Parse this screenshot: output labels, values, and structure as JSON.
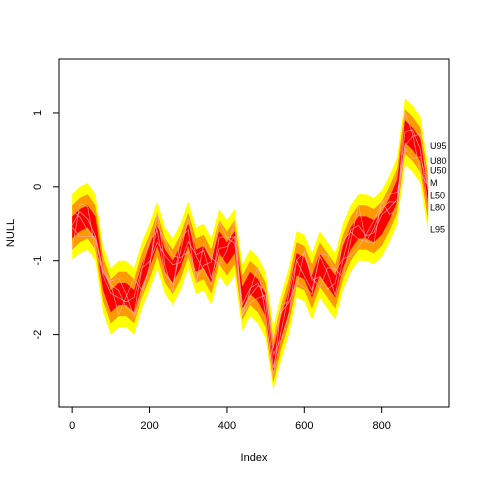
{
  "chart_data": {
    "type": "area",
    "xlabel": "Index",
    "ylabel": "NULL",
    "xlim": [
      -34,
      974
    ],
    "ylim": [
      -2.98,
      1.73
    ],
    "x_ticks": [
      0,
      200,
      400,
      600,
      800
    ],
    "x_tick_labels": [
      "0",
      "200",
      "400",
      "600",
      "800"
    ],
    "y_ticks": [
      -2,
      -1,
      0,
      1
    ],
    "y_tick_labels": [
      "-2",
      "-1",
      "0",
      "1"
    ],
    "grid": false,
    "colors": {
      "band95": "#ffff00",
      "band80": "#ff9900",
      "band50": "#ff0000",
      "trace": "#ffb0b0",
      "axis": "#000000"
    },
    "x": [
      0,
      20,
      40,
      60,
      80,
      100,
      120,
      140,
      160,
      180,
      200,
      220,
      240,
      260,
      280,
      300,
      320,
      340,
      360,
      380,
      400,
      420,
      440,
      460,
      480,
      500,
      520,
      540,
      560,
      580,
      600,
      620,
      640,
      660,
      680,
      700,
      720,
      740,
      760,
      780,
      800,
      820,
      840,
      860,
      880,
      900,
      920
    ],
    "series": [
      {
        "name": "M",
        "values": [
          -0.55,
          -0.45,
          -0.4,
          -0.55,
          -1.25,
          -1.55,
          -1.45,
          -1.45,
          -1.55,
          -1.2,
          -0.95,
          -0.65,
          -1.0,
          -1.15,
          -0.95,
          -0.65,
          -1.0,
          -0.95,
          -1.15,
          -0.75,
          -0.9,
          -0.75,
          -1.5,
          -1.3,
          -1.4,
          -1.6,
          -2.35,
          -1.9,
          -1.55,
          -1.05,
          -1.1,
          -1.35,
          -1.05,
          -1.2,
          -1.35,
          -0.95,
          -0.7,
          -0.55,
          -0.55,
          -0.6,
          -0.5,
          -0.3,
          -0.05,
          0.75,
          0.65,
          0.5,
          -0.15
        ]
      },
      {
        "name": "L50",
        "values": [
          -0.7,
          -0.6,
          -0.55,
          -0.7,
          -1.4,
          -1.7,
          -1.6,
          -1.6,
          -1.7,
          -1.35,
          -1.1,
          -0.8,
          -1.15,
          -1.3,
          -1.1,
          -0.8,
          -1.15,
          -1.1,
          -1.3,
          -0.9,
          -1.05,
          -0.9,
          -1.65,
          -1.45,
          -1.55,
          -1.75,
          -2.5,
          -2.05,
          -1.7,
          -1.2,
          -1.25,
          -1.5,
          -1.2,
          -1.35,
          -1.5,
          -1.1,
          -0.85,
          -0.7,
          -0.7,
          -0.75,
          -0.65,
          -0.45,
          -0.2,
          0.6,
          0.5,
          0.35,
          -0.3
        ]
      },
      {
        "name": "U50",
        "values": [
          -0.4,
          -0.3,
          -0.25,
          -0.4,
          -1.1,
          -1.4,
          -1.3,
          -1.3,
          -1.4,
          -1.05,
          -0.8,
          -0.5,
          -0.85,
          -1.0,
          -0.8,
          -0.5,
          -0.85,
          -0.8,
          -1.0,
          -0.6,
          -0.75,
          -0.6,
          -1.35,
          -1.15,
          -1.25,
          -1.45,
          -2.2,
          -1.75,
          -1.4,
          -0.9,
          -0.95,
          -1.2,
          -0.9,
          -1.05,
          -1.2,
          -0.8,
          -0.55,
          -0.4,
          -0.4,
          -0.45,
          -0.35,
          -0.15,
          0.1,
          0.9,
          0.8,
          0.65,
          0.0
        ]
      },
      {
        "name": "L80",
        "values": [
          -0.85,
          -0.75,
          -0.7,
          -0.85,
          -1.55,
          -1.85,
          -1.75,
          -1.75,
          -1.85,
          -1.5,
          -1.25,
          -0.95,
          -1.3,
          -1.45,
          -1.25,
          -0.95,
          -1.3,
          -1.25,
          -1.45,
          -1.05,
          -1.2,
          -1.05,
          -1.8,
          -1.6,
          -1.7,
          -1.9,
          -2.65,
          -2.2,
          -1.85,
          -1.35,
          -1.4,
          -1.65,
          -1.35,
          -1.5,
          -1.65,
          -1.25,
          -1.0,
          -0.85,
          -0.85,
          -0.9,
          -0.8,
          -0.6,
          -0.35,
          0.45,
          0.35,
          0.2,
          -0.45
        ]
      },
      {
        "name": "U80",
        "values": [
          -0.25,
          -0.15,
          -0.1,
          -0.25,
          -0.95,
          -1.25,
          -1.15,
          -1.15,
          -1.25,
          -0.9,
          -0.65,
          -0.35,
          -0.7,
          -0.85,
          -0.65,
          -0.35,
          -0.7,
          -0.65,
          -0.85,
          -0.45,
          -0.6,
          -0.45,
          -1.2,
          -1.0,
          -1.1,
          -1.3,
          -2.05,
          -1.6,
          -1.25,
          -0.75,
          -0.8,
          -1.05,
          -0.75,
          -0.9,
          -1.05,
          -0.65,
          -0.4,
          -0.25,
          -0.25,
          -0.3,
          -0.2,
          0.0,
          0.25,
          1.05,
          0.95,
          0.8,
          0.15
        ]
      },
      {
        "name": "L95",
        "values": [
          -0.98,
          -0.9,
          -0.85,
          -1.0,
          -1.7,
          -2.0,
          -1.9,
          -1.9,
          -2.0,
          -1.65,
          -1.4,
          -1.1,
          -1.45,
          -1.6,
          -1.4,
          -1.1,
          -1.45,
          -1.4,
          -1.6,
          -1.2,
          -1.35,
          -1.2,
          -1.95,
          -1.75,
          -1.85,
          -2.05,
          -2.75,
          -2.35,
          -2.0,
          -1.5,
          -1.55,
          -1.8,
          -1.5,
          -1.65,
          -1.8,
          -1.4,
          -1.15,
          -1.0,
          -1.0,
          -1.05,
          -0.95,
          -0.75,
          -0.5,
          0.3,
          0.2,
          0.05,
          -0.6
        ]
      },
      {
        "name": "U95",
        "values": [
          -0.1,
          0.0,
          0.05,
          -0.1,
          -0.8,
          -1.1,
          -1.0,
          -1.0,
          -1.1,
          -0.75,
          -0.5,
          -0.2,
          -0.55,
          -0.7,
          -0.5,
          -0.2,
          -0.55,
          -0.5,
          -0.7,
          -0.3,
          -0.45,
          -0.3,
          -1.05,
          -0.85,
          -0.95,
          -1.15,
          -1.9,
          -1.45,
          -1.1,
          -0.6,
          -0.65,
          -0.9,
          -0.6,
          -0.75,
          -0.9,
          -0.5,
          -0.25,
          -0.1,
          -0.1,
          -0.15,
          -0.05,
          0.15,
          0.4,
          1.2,
          1.1,
          0.95,
          0.3
        ]
      }
    ],
    "side_labels": [
      {
        "name": "U95",
        "y": 0.55
      },
      {
        "name": "U80",
        "y": 0.35
      },
      {
        "name": "U50",
        "y": 0.22
      },
      {
        "name": "M",
        "y": 0.05
      },
      {
        "name": "L50",
        "y": -0.12
      },
      {
        "name": "L80",
        "y": -0.28
      },
      {
        "name": "L95",
        "y": -0.58
      }
    ]
  }
}
